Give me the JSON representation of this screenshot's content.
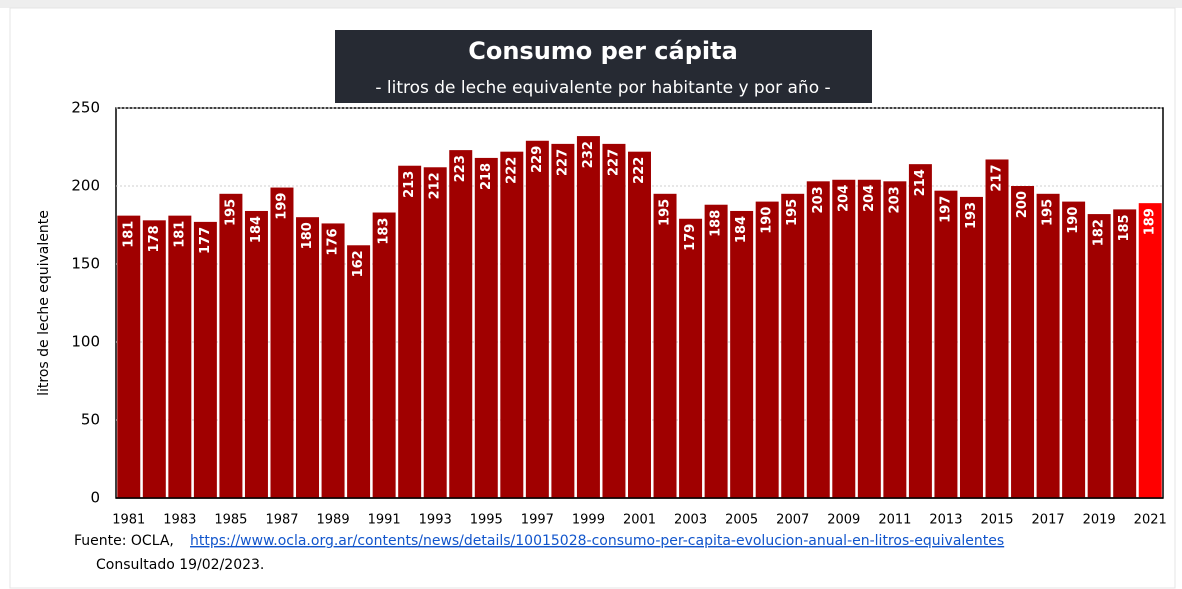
{
  "chart_data": {
    "type": "bar",
    "title": "Consumo per cápita",
    "subtitle": "- litros de leche equivalente por habitante y por año -",
    "y_label": "litros de leche equivalente",
    "categories": [
      "1981",
      null,
      "1983",
      null,
      "1985",
      null,
      "1987",
      null,
      "1989",
      null,
      "1991",
      null,
      "1993",
      null,
      "1995",
      null,
      "1997",
      null,
      "1999",
      null,
      "2001",
      null,
      "2003",
      null,
      "2005",
      null,
      "2007",
      null,
      "2009",
      null,
      "2011",
      null,
      "2013",
      null,
      "2015",
      null,
      "2017",
      null,
      "2019",
      null,
      "2021"
    ],
    "values": [
      181,
      178,
      181,
      177,
      195,
      184,
      199,
      180,
      176,
      162,
      183,
      213,
      212,
      223,
      218,
      222,
      229,
      227,
      232,
      227,
      222,
      195,
      179,
      188,
      184,
      190,
      195,
      203,
      204,
      204,
      203,
      214,
      197,
      193,
      217,
      200,
      195,
      190,
      182,
      185,
      189
    ],
    "colors": [
      "#a00000",
      "#a00000",
      "#a00000",
      "#a00000",
      "#a00000",
      "#a00000",
      "#a00000",
      "#a00000",
      "#a00000",
      "#a00000",
      "#a00000",
      "#a00000",
      "#a00000",
      "#a00000",
      "#a00000",
      "#a00000",
      "#a00000",
      "#a00000",
      "#a00000",
      "#a00000",
      "#a00000",
      "#a00000",
      "#a00000",
      "#a00000",
      "#a00000",
      "#a00000",
      "#a00000",
      "#a00000",
      "#a00000",
      "#a00000",
      "#a00000",
      "#a00000",
      "#a00000",
      "#a00000",
      "#a00000",
      "#a00000",
      "#a00000",
      "#a00000",
      "#a00000",
      "#a00000",
      "#ff0000"
    ],
    "ylim": [
      0,
      250
    ],
    "yticks": [
      0,
      50,
      100,
      150,
      200,
      250
    ],
    "grid": true,
    "source_label": "Fuente: OCLA,",
    "source_url": "https://www.ocla.org.ar/contents/news/details/10015028-consumo-per-capita-evolucion-anual-en-litros-equivalentes",
    "note": "Consultado 19/02/2023."
  }
}
